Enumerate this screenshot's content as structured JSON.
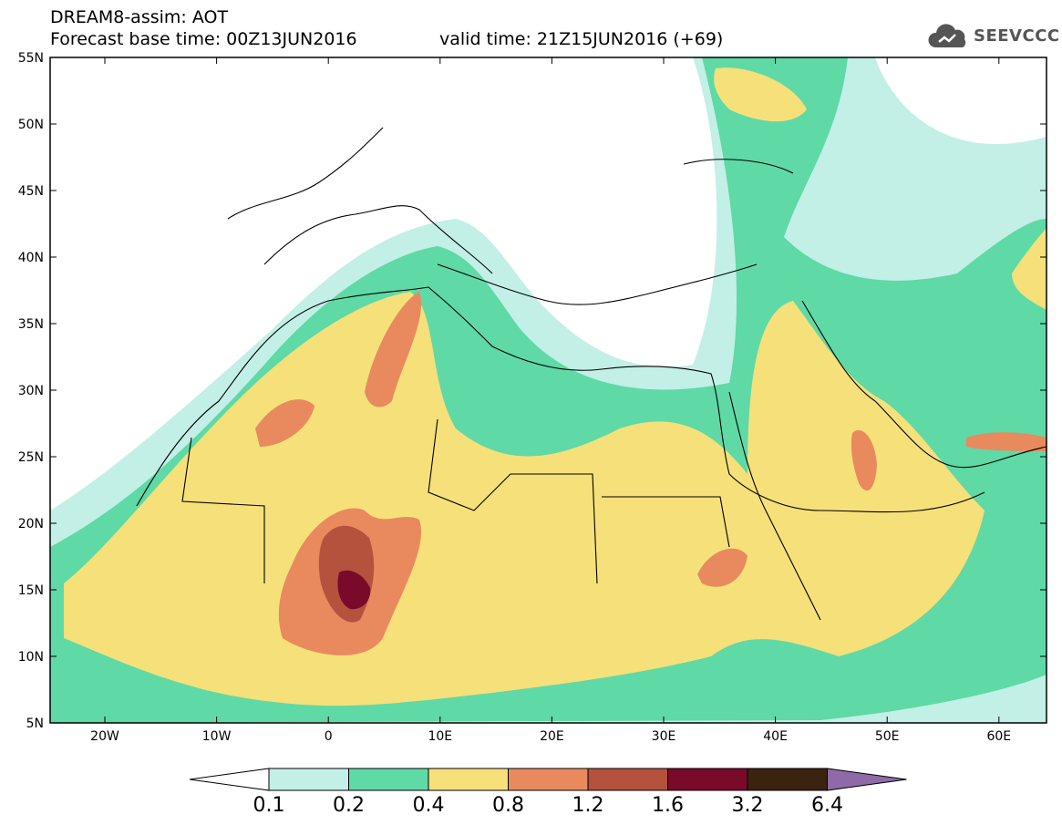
{
  "header": {
    "title": "DREAM8-assim: AOT",
    "base_time": "Forecast base time: 00Z13JUN2016",
    "valid_time": "valid time: 21Z15JUN2016 (+69)"
  },
  "brand": {
    "text": "SEEVCCC",
    "icon": "cloud-icon"
  },
  "axes": {
    "lat_labels": [
      "55N",
      "50N",
      "45N",
      "40N",
      "35N",
      "30N",
      "25N",
      "20N",
      "15N",
      "10N",
      "5N"
    ],
    "lon_labels": [
      "20W",
      "10W",
      "0",
      "10E",
      "20E",
      "30E",
      "40E",
      "50E",
      "60E"
    ]
  },
  "colorbar": {
    "labels": [
      "0.1",
      "0.2",
      "0.4",
      "0.8",
      "1.2",
      "1.6",
      "3.2",
      "6.4"
    ],
    "colors": [
      "#ffffff",
      "#c2efe6",
      "#5fd9a6",
      "#f6e07a",
      "#e88a5e",
      "#b4523e",
      "#7a0a2a",
      "#3a2410",
      "#8e6aa8"
    ]
  }
}
